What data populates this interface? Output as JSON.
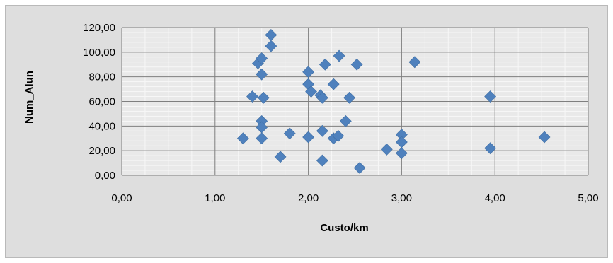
{
  "chart_data": {
    "type": "scatter",
    "xlabel": "Custo/km",
    "ylabel": "Num_Alun",
    "xlim": [
      0,
      5
    ],
    "ylim": [
      0,
      120
    ],
    "x_ticks": [
      "0,00",
      "1,00",
      "2,00",
      "3,00",
      "4,00",
      "5,00"
    ],
    "y_ticks": [
      "0,00",
      "20,00",
      "40,00",
      "60,00",
      "80,00",
      "100,00",
      "120,00"
    ],
    "grid": true,
    "legend": "none",
    "marker_color": "#4f81bd",
    "series": [
      {
        "points": [
          [
            1.3,
            30
          ],
          [
            1.4,
            64
          ],
          [
            1.46,
            91
          ],
          [
            1.5,
            95
          ],
          [
            1.5,
            82
          ],
          [
            1.5,
            44
          ],
          [
            1.5,
            39
          ],
          [
            1.5,
            30
          ],
          [
            1.52,
            63
          ],
          [
            1.6,
            114
          ],
          [
            1.6,
            105
          ],
          [
            1.7,
            15
          ],
          [
            1.8,
            34
          ],
          [
            2.0,
            84
          ],
          [
            2.0,
            74
          ],
          [
            2.0,
            31
          ],
          [
            2.03,
            68
          ],
          [
            2.13,
            65
          ],
          [
            2.15,
            63
          ],
          [
            2.15,
            36
          ],
          [
            2.15,
            12
          ],
          [
            2.18,
            90
          ],
          [
            2.27,
            74
          ],
          [
            2.27,
            30
          ],
          [
            2.32,
            32
          ],
          [
            2.33,
            97
          ],
          [
            2.4,
            44
          ],
          [
            2.44,
            63
          ],
          [
            2.52,
            90
          ],
          [
            2.55,
            6
          ],
          [
            2.84,
            21
          ],
          [
            3.0,
            33
          ],
          [
            3.0,
            27
          ],
          [
            3.0,
            18
          ],
          [
            3.14,
            92
          ],
          [
            3.95,
            64
          ],
          [
            3.95,
            22
          ],
          [
            4.53,
            31
          ]
        ]
      }
    ]
  }
}
